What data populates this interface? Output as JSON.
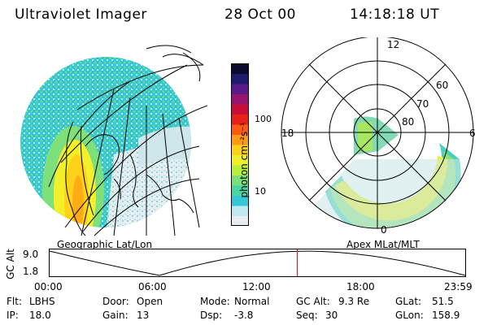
{
  "header": {
    "title": "Ultraviolet Imager",
    "date": "28 Oct 00",
    "time": "14:18:18 UT"
  },
  "left_map": {
    "caption": "Geographic Lat/Lon"
  },
  "colorbar": {
    "unit_label": "photon cm⁻²s⁻¹",
    "ticks": [
      "100",
      "10"
    ],
    "colors": [
      "#e8eef0",
      "#bfe8f0",
      "#35c7d8",
      "#49d6a4",
      "#7ae07a",
      "#b8ee3c",
      "#f0f02a",
      "#ffd21a",
      "#ff9a14",
      "#ff5a12",
      "#e8201a",
      "#c80f3a",
      "#98146e",
      "#5a1a8c",
      "#1e1a6e",
      "#0a0a2a"
    ]
  },
  "polar_plot": {
    "caption": "Apex MLat/MLT",
    "mlt_labels": {
      "top": "12",
      "left": "18",
      "right": "6",
      "bottom": "0"
    },
    "lat_labels": [
      "60",
      "70",
      "80"
    ]
  },
  "timeline": {
    "axis_label": "GC Alt",
    "y_ticks": [
      "9.0",
      "1.8"
    ],
    "x_ticks": [
      "00:00",
      "06:00",
      "12:00",
      "18:00",
      "23:59"
    ],
    "current_time_fraction": 0.596
  },
  "status": {
    "rows": [
      [
        {
          "key": "Flt:",
          "value": "LBHS"
        },
        {
          "key": "Door:",
          "value": "Open"
        },
        {
          "key": "Mode:",
          "value": "Normal"
        },
        {
          "key": "GC Alt:",
          "value": "9.3 Re"
        },
        {
          "key": "GLat:",
          "value": "51.5"
        }
      ],
      [
        {
          "key": "IP:",
          "value": "18.0"
        },
        {
          "key": "Gain:",
          "value": "13"
        },
        {
          "key": "Dsp:",
          "value": "-3.8"
        },
        {
          "key": "Seq:",
          "value": "30"
        },
        {
          "key": "GLon:",
          "value": "158.9"
        }
      ]
    ]
  }
}
